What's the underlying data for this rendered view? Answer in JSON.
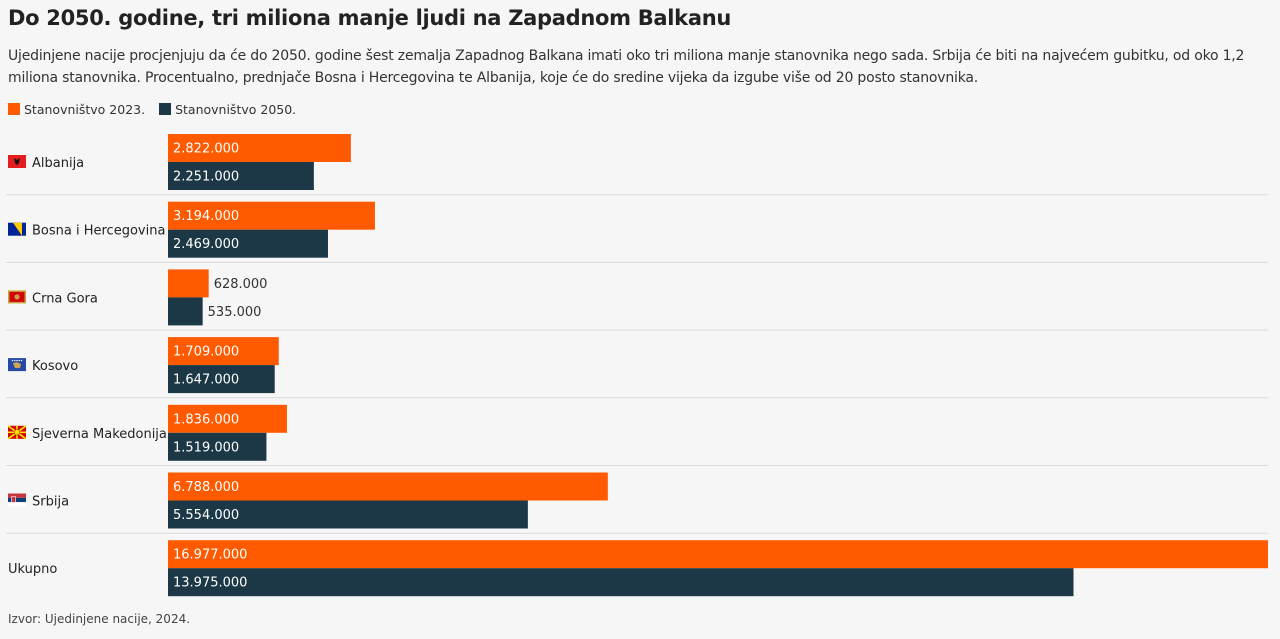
{
  "title": "Do 2050. godine, tri miliona manje ljudi na Zapadnom Balkanu",
  "subtitle": "Ujedinjene nacije procjenjuju da će do 2050. godine šest zemalja Zapadnog Balkana imati oko tri miliona manje stanovnika nego sada. Srbija će biti na najvećem gubitku, od oko 1,2 miliona stanovnika. Procentualno, prednjače Bosna i Hercegovina te Albanija, koje će do sredine vijeka da izgube više od 20 posto stanovnika.",
  "legend": [
    {
      "label": "Stanovništvo 2023.",
      "color": "#ff5a00"
    },
    {
      "label": "Stanovništvo 2050.",
      "color": "#1c3745"
    }
  ],
  "source": "Izvor: Ujedinjene nacije, 2024.",
  "chart_data": {
    "type": "bar",
    "orientation": "horizontal",
    "categories": [
      "Albanija",
      "Bosna i Hercegovina",
      "Crna Gora",
      "Kosovo",
      "Sjeverna Makedonija",
      "Srbija",
      "Ukupno"
    ],
    "flags": [
      "albania-flag-icon",
      "bosnia-flag-icon",
      "montenegro-flag-icon",
      "kosovo-flag-icon",
      "north-macedonia-flag-icon",
      "serbia-flag-icon",
      null
    ],
    "series": [
      {
        "name": "Stanovništvo 2023.",
        "color": "#ff5a00",
        "values": [
          2822000,
          3194000,
          628000,
          1709000,
          1836000,
          6788000,
          16977000
        ],
        "labels": [
          "2.822.000",
          "3.194.000",
          "628.000",
          "1.709.000",
          "1.836.000",
          "6.788.000",
          "16.977.000"
        ]
      },
      {
        "name": "Stanovništvo 2050.",
        "color": "#1c3745",
        "values": [
          2251000,
          2469000,
          535000,
          1647000,
          1519000,
          5554000,
          13975000
        ],
        "labels": [
          "2.251.000",
          "2.469.000",
          "535.000",
          "1.647.000",
          "1.519.000",
          "5.554.000",
          "13.975.000"
        ]
      }
    ],
    "xlim": [
      0,
      16977000
    ],
    "grid": false
  }
}
